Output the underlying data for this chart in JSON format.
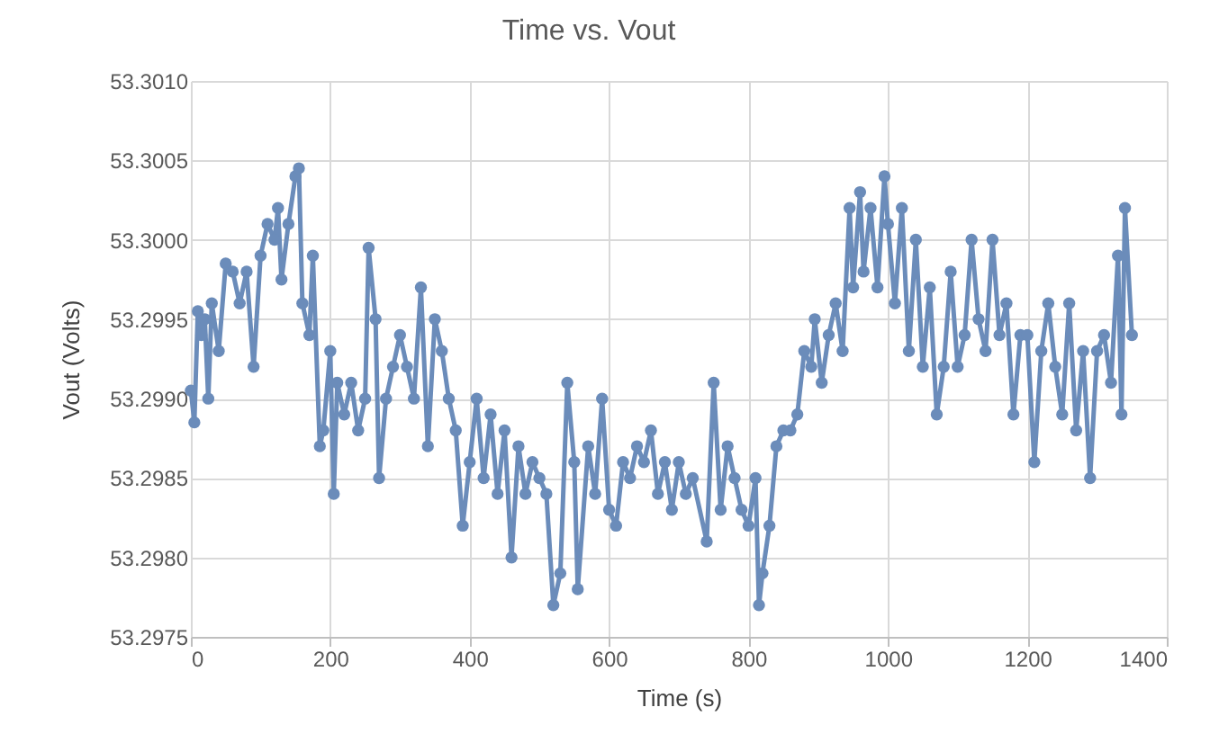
{
  "chart_data": {
    "type": "line",
    "title": "Time vs. Vout",
    "xlabel": "Time (s)",
    "ylabel": "Vout (Volts)",
    "x": [
      0,
      5,
      10,
      15,
      20,
      25,
      30,
      40,
      50,
      60,
      70,
      80,
      90,
      100,
      110,
      120,
      125,
      130,
      140,
      150,
      155,
      160,
      170,
      175,
      185,
      190,
      200,
      205,
      210,
      220,
      230,
      240,
      250,
      255,
      265,
      270,
      280,
      290,
      300,
      310,
      320,
      330,
      340,
      350,
      360,
      370,
      380,
      390,
      400,
      410,
      420,
      430,
      440,
      450,
      460,
      470,
      480,
      490,
      500,
      510,
      520,
      530,
      540,
      550,
      555,
      570,
      580,
      590,
      600,
      610,
      620,
      630,
      640,
      650,
      660,
      670,
      680,
      690,
      700,
      710,
      720,
      740,
      750,
      760,
      770,
      780,
      790,
      800,
      810,
      815,
      820,
      830,
      840,
      850,
      860,
      870,
      880,
      890,
      895,
      905,
      915,
      925,
      935,
      945,
      950,
      960,
      965,
      975,
      985,
      995,
      1000,
      1010,
      1020,
      1030,
      1040,
      1050,
      1060,
      1070,
      1080,
      1090,
      1100,
      1110,
      1120,
      1130,
      1140,
      1150,
      1160,
      1170,
      1180,
      1190,
      1200,
      1210,
      1220,
      1230,
      1240,
      1250,
      1260,
      1270,
      1280,
      1290,
      1300,
      1310,
      1320,
      1330,
      1335,
      1340,
      1350
    ],
    "series": [
      {
        "color": "#6b8cba",
        "values": [
          53.29905,
          53.29885,
          53.29955,
          53.2994,
          53.2995,
          53.299,
          53.2996,
          53.2993,
          53.29985,
          53.2998,
          53.2996,
          53.2998,
          53.2992,
          53.2999,
          53.3001,
          53.3,
          53.3002,
          53.29975,
          53.3001,
          53.3004,
          53.30045,
          53.2996,
          53.2994,
          53.2999,
          53.2987,
          53.2988,
          53.2993,
          53.2984,
          53.2991,
          53.2989,
          53.2991,
          53.2988,
          53.299,
          53.29995,
          53.2995,
          53.2985,
          53.299,
          53.2992,
          53.2994,
          53.2992,
          53.299,
          53.2997,
          53.2987,
          53.2995,
          53.2993,
          53.299,
          53.2988,
          53.2982,
          53.2986,
          53.299,
          53.2985,
          53.2989,
          53.2984,
          53.2988,
          53.298,
          53.2987,
          53.2984,
          53.2986,
          53.2985,
          53.2984,
          53.2977,
          53.2979,
          53.2991,
          53.2986,
          53.2978,
          53.2987,
          53.2984,
          53.299,
          53.2983,
          53.2982,
          53.2986,
          53.2985,
          53.2987,
          53.2986,
          53.2988,
          53.2984,
          53.2986,
          53.2983,
          53.2986,
          53.2984,
          53.2985,
          53.2981,
          53.2991,
          53.2983,
          53.2987,
          53.2985,
          53.2983,
          53.2982,
          53.2985,
          53.2977,
          53.2979,
          53.2982,
          53.2987,
          53.2988,
          53.2988,
          53.2989,
          53.2993,
          53.2992,
          53.2995,
          53.2991,
          53.2994,
          53.2996,
          53.2993,
          53.3002,
          53.2997,
          53.3003,
          53.2998,
          53.3002,
          53.2997,
          53.3004,
          53.3001,
          53.2996,
          53.3002,
          53.2993,
          53.3,
          53.2992,
          53.2997,
          53.2989,
          53.2992,
          53.2998,
          53.2992,
          53.2994,
          53.3,
          53.2995,
          53.2993,
          53.3,
          53.2994,
          53.2996,
          53.2989,
          53.2994,
          53.2994,
          53.2986,
          53.2993,
          53.2996,
          53.2992,
          53.2989,
          53.2996,
          53.2988,
          53.2993,
          53.2985,
          53.2993,
          53.2994,
          53.2991,
          53.2999,
          53.2989,
          53.3002,
          53.2994
        ]
      }
    ],
    "xlim": [
      0,
      1400
    ],
    "xticks": [
      0,
      200,
      400,
      600,
      800,
      1000,
      1200,
      1400
    ],
    "ylim": [
      53.2975,
      53.301
    ],
    "yticks": [
      {
        "value": 53.2975,
        "label": "53.2975"
      },
      {
        "value": 53.298,
        "label": "53.2980"
      },
      {
        "value": 53.2985,
        "label": "53.2985"
      },
      {
        "value": 53.299,
        "label": "53.2990"
      },
      {
        "value": 53.2995,
        "label": "53.2995"
      },
      {
        "value": 53.3,
        "label": "53.3000"
      },
      {
        "value": 53.3005,
        "label": "53.3005"
      },
      {
        "value": 53.301,
        "label": "53.3010"
      }
    ],
    "grid": true,
    "marker": "circle",
    "line_style": "solid"
  }
}
